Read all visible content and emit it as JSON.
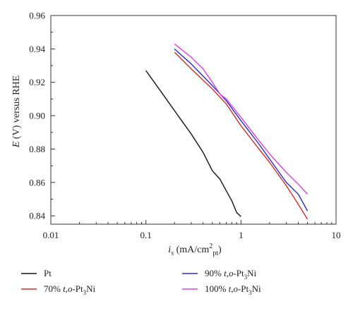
{
  "chart_data": {
    "type": "line",
    "x_scale": "log",
    "xlim": [
      0.01,
      10
    ],
    "ylim": [
      0.835,
      0.96
    ],
    "x_ticks": [
      0.01,
      0.1,
      1,
      10
    ],
    "x_tick_labels": [
      "0.01",
      "0.1",
      "1",
      "10"
    ],
    "y_ticks": [
      0.84,
      0.86,
      0.88,
      0.9,
      0.92,
      0.94,
      0.96
    ],
    "y_tick_labels": [
      "0.84",
      "0.86",
      "0.88",
      "0.90",
      "0.92",
      "0.94",
      "0.96"
    ],
    "xlabel": {
      "i": "i",
      "sub": "s",
      "rest": " (mA/cm",
      "sup": "2",
      "sub2": "pt",
      "close": ")"
    },
    "ylabel": {
      "e": "E",
      "rest": " (V) versus RHE"
    },
    "legend_position": "bottom",
    "series": [
      {
        "name": "Pt",
        "name_parts": {
          "prefix": "Pt",
          "ital": "",
          "mid": "",
          "sub": "",
          "suffix": ""
        },
        "color": "#111111",
        "x": [
          0.1,
          0.15,
          0.2,
          0.3,
          0.4,
          0.5,
          0.6,
          0.7,
          0.8,
          0.9,
          1.0
        ],
        "y": [
          0.927,
          0.913,
          0.903,
          0.889,
          0.878,
          0.867,
          0.862,
          0.855,
          0.849,
          0.842,
          0.8395
        ]
      },
      {
        "name": "70% t,o-Pt3Ni",
        "name_parts": {
          "prefix": "70% ",
          "ital": "t,o",
          "mid": "-Pt",
          "sub": "3",
          "suffix": "Ni"
        },
        "color": "#d92b2b",
        "x": [
          0.2,
          0.3,
          0.5,
          0.7,
          1.0,
          1.5,
          2.0,
          3.0,
          4.0,
          5.0
        ],
        "y": [
          0.938,
          0.928,
          0.916,
          0.907,
          0.894,
          0.881,
          0.872,
          0.858,
          0.847,
          0.838
        ]
      },
      {
        "name": "90% t,o-Pt3Ni",
        "name_parts": {
          "prefix": "90% ",
          "ital": "t,o",
          "mid": "-Pt",
          "sub": "3",
          "suffix": "Ni"
        },
        "color": "#2b2bd1",
        "x": [
          0.2,
          0.3,
          0.5,
          0.7,
          1.0,
          1.5,
          2.0,
          3.0,
          4.0,
          5.0
        ],
        "y": [
          0.94,
          0.931,
          0.918,
          0.909,
          0.897,
          0.884,
          0.874,
          0.86,
          0.853,
          0.843
        ]
      },
      {
        "name": "100% t,o-Pt3Ni",
        "name_parts": {
          "prefix": "100% ",
          "ital": "t,o",
          "mid": "-Pt",
          "sub": "3",
          "suffix": "Ni"
        },
        "color": "#e040e0",
        "x": [
          0.2,
          0.3,
          0.4,
          0.5,
          0.6,
          0.7,
          1.0,
          1.5,
          2.0,
          3.0,
          4.0,
          5.0
        ],
        "y": [
          0.943,
          0.935,
          0.928,
          0.92,
          0.913,
          0.91,
          0.899,
          0.886,
          0.877,
          0.866,
          0.859,
          0.853
        ]
      }
    ]
  }
}
